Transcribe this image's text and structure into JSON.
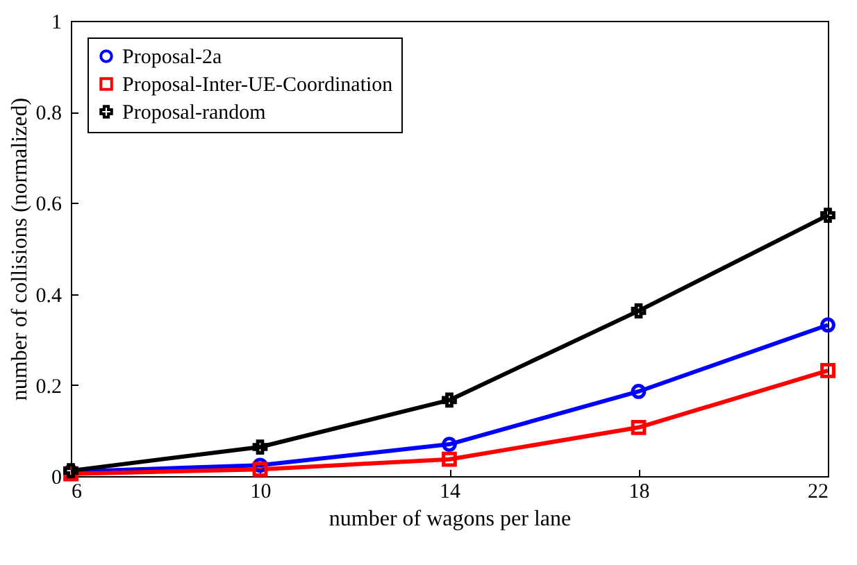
{
  "chart_data": {
    "type": "line",
    "xlabel": "number of wagons per lane",
    "ylabel": "number of collisions (normalized)",
    "x": [
      6,
      10,
      14,
      18,
      22
    ],
    "series": [
      {
        "name": "Proposal-2a",
        "color": "#0000ff",
        "marker": "circle",
        "values": [
          0.01,
          0.024,
          0.07,
          0.186,
          0.332
        ]
      },
      {
        "name": "Proposal-Inter-UE-Coordination",
        "color": "#ff0000",
        "marker": "square",
        "values": [
          0.005,
          0.015,
          0.037,
          0.107,
          0.232
        ]
      },
      {
        "name": "Proposal-random",
        "color": "#000000",
        "marker": "cross",
        "values": [
          0.012,
          0.064,
          0.167,
          0.363,
          0.573
        ]
      }
    ],
    "xlim": [
      6,
      22
    ],
    "xticks": [
      6,
      10,
      14,
      18,
      22
    ],
    "ylim": [
      0,
      1
    ],
    "yticks": [
      0,
      0.2,
      0.4,
      0.6,
      0.8,
      1
    ],
    "grid": false,
    "legend": "top left",
    "line_style": "solid"
  }
}
